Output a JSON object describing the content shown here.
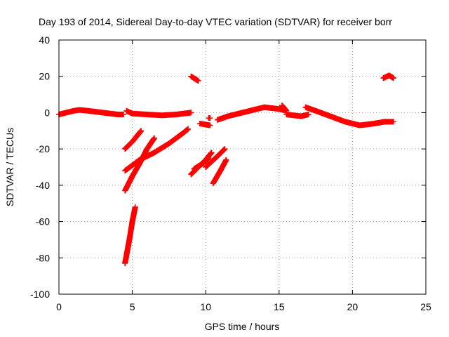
{
  "chart_data": {
    "type": "scatter",
    "title": "Day 193 of 2014, Sidereal Day-to-day VTEC variation (SDTVAR) for receiver borr",
    "xlabel": "GPS time / hours",
    "ylabel": "SDTVAR / TECUs",
    "xlim": [
      0,
      25
    ],
    "ylim": [
      -100,
      40
    ],
    "xticks": [
      0,
      5,
      10,
      15,
      20,
      25
    ],
    "yticks": [
      -100,
      -80,
      -60,
      -40,
      -20,
      0,
      20,
      40
    ],
    "xtick_labels": [
      "0",
      "5",
      "10",
      "15",
      "20",
      "25"
    ],
    "ytick_labels": [
      "-100",
      "-80",
      "-60",
      "-40",
      "-20",
      "0",
      "20",
      "40"
    ],
    "grid": true,
    "marker": "+",
    "color": "#ff0000",
    "series": [
      {
        "segments": [
          [
            [
              0.0,
              -1
            ],
            [
              0.5,
              0
            ],
            [
              1.0,
              1
            ],
            [
              1.4,
              1.5
            ],
            [
              2.0,
              1
            ],
            [
              3.0,
              0
            ],
            [
              4.0,
              -1
            ],
            [
              4.4,
              -1
            ]
          ],
          [
            [
              4.6,
              1
            ],
            [
              5.0,
              -0.5
            ],
            [
              6.0,
              -1
            ],
            [
              7.0,
              -1.5
            ],
            [
              8.0,
              -1
            ],
            [
              9.0,
              0
            ]
          ],
          [
            [
              9.0,
              20
            ],
            [
              9.5,
              17.5
            ]
          ],
          [
            [
              9.6,
              -6
            ],
            [
              10.3,
              -7
            ]
          ],
          [
            [
              10.2,
              -3
            ],
            [
              10.3,
              -3
            ]
          ],
          [
            [
              10.8,
              -4
            ],
            [
              11.5,
              -2
            ],
            [
              12.0,
              -1
            ],
            [
              12.5,
              0
            ],
            [
              13.0,
              1
            ],
            [
              13.5,
              2
            ],
            [
              14.0,
              3
            ],
            [
              15.0,
              2
            ],
            [
              15.5,
              1
            ],
            [
              15.2,
              4
            ]
          ],
          [
            [
              15.5,
              -1
            ],
            [
              16.5,
              -2
            ],
            [
              17.0,
              -1
            ]
          ],
          [
            [
              16.8,
              3
            ],
            [
              17.5,
              1
            ],
            [
              18.5,
              -2
            ],
            [
              19.5,
              -5
            ],
            [
              20.5,
              -7
            ],
            [
              21.5,
              -6
            ],
            [
              22.2,
              -5
            ],
            [
              22.8,
              -5
            ]
          ],
          [
            [
              22.1,
              19
            ],
            [
              22.5,
              20.5
            ],
            [
              22.8,
              19
            ]
          ],
          [
            [
              4.5,
              -83
            ],
            [
              4.8,
              -70
            ],
            [
              5.0,
              -60
            ],
            [
              5.2,
              -52
            ]
          ],
          [
            [
              4.5,
              -43
            ],
            [
              5.0,
              -35
            ],
            [
              5.5,
              -28
            ],
            [
              6.0,
              -20
            ],
            [
              6.5,
              -14
            ]
          ],
          [
            [
              4.5,
              -32
            ],
            [
              5.5,
              -26
            ],
            [
              6.5,
              -22
            ],
            [
              7.5,
              -17
            ],
            [
              8.5,
              -11
            ],
            [
              8.8,
              -9
            ]
          ],
          [
            [
              4.5,
              -20
            ],
            [
              5.0,
              -16
            ],
            [
              5.6,
              -10
            ]
          ],
          [
            [
              9.0,
              -34
            ],
            [
              9.5,
              -30
            ],
            [
              10.0,
              -26
            ],
            [
              10.4,
              -22
            ]
          ],
          [
            [
              9.2,
              -31
            ],
            [
              9.8,
              -28
            ],
            [
              10.2,
              -25
            ]
          ],
          [
            [
              10.0,
              -30
            ],
            [
              10.8,
              -24
            ],
            [
              11.3,
              -20
            ]
          ],
          [
            [
              10.5,
              -39
            ],
            [
              11.0,
              -32
            ],
            [
              11.4,
              -26
            ]
          ]
        ]
      }
    ]
  }
}
